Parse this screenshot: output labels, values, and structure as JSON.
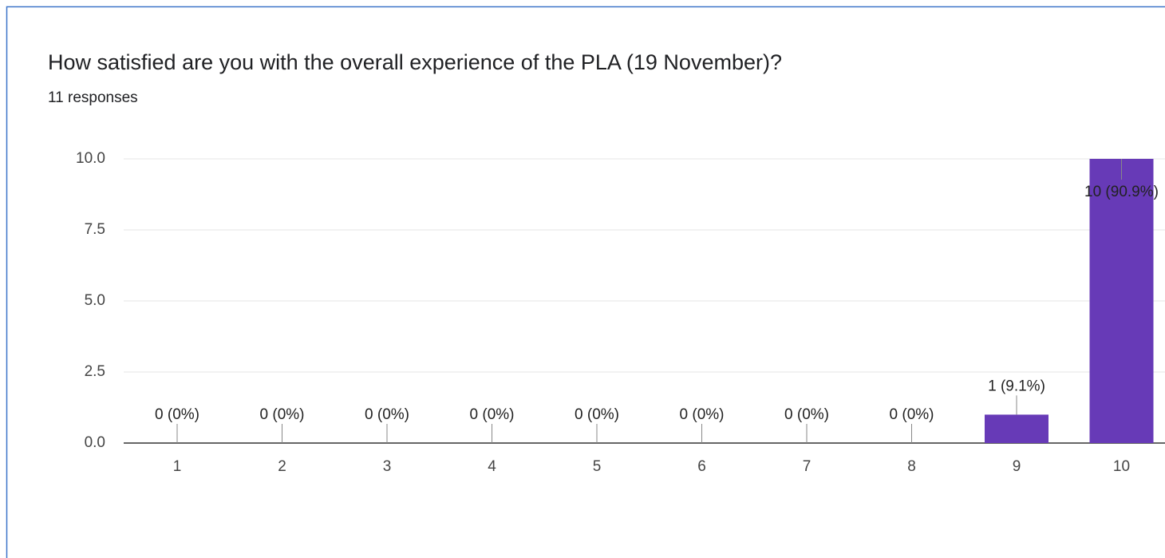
{
  "chart_data": {
    "type": "bar",
    "title": "How satisfied are you with the overall experience of the PLA (19 November)?",
    "subtitle": "11 responses",
    "categories": [
      "1",
      "2",
      "3",
      "4",
      "5",
      "6",
      "7",
      "8",
      "9",
      "10"
    ],
    "values": [
      0,
      0,
      0,
      0,
      0,
      0,
      0,
      0,
      1,
      10
    ],
    "value_labels": [
      "0 (0%)",
      "0 (0%)",
      "0 (0%)",
      "0 (0%)",
      "0 (0%)",
      "0 (0%)",
      "0 (0%)",
      "0 (0%)",
      "1 (9.1%)",
      "10 (90.9%)"
    ],
    "color": "#673ab7",
    "ylim": [
      0,
      10
    ],
    "yticks": [
      {
        "value": 0,
        "label": "0.0"
      },
      2.5,
      {
        "value": 5,
        "label": "5.0"
      },
      7.5,
      {
        "value": 10,
        "label": "10.0"
      }
    ],
    "grid": true
  }
}
